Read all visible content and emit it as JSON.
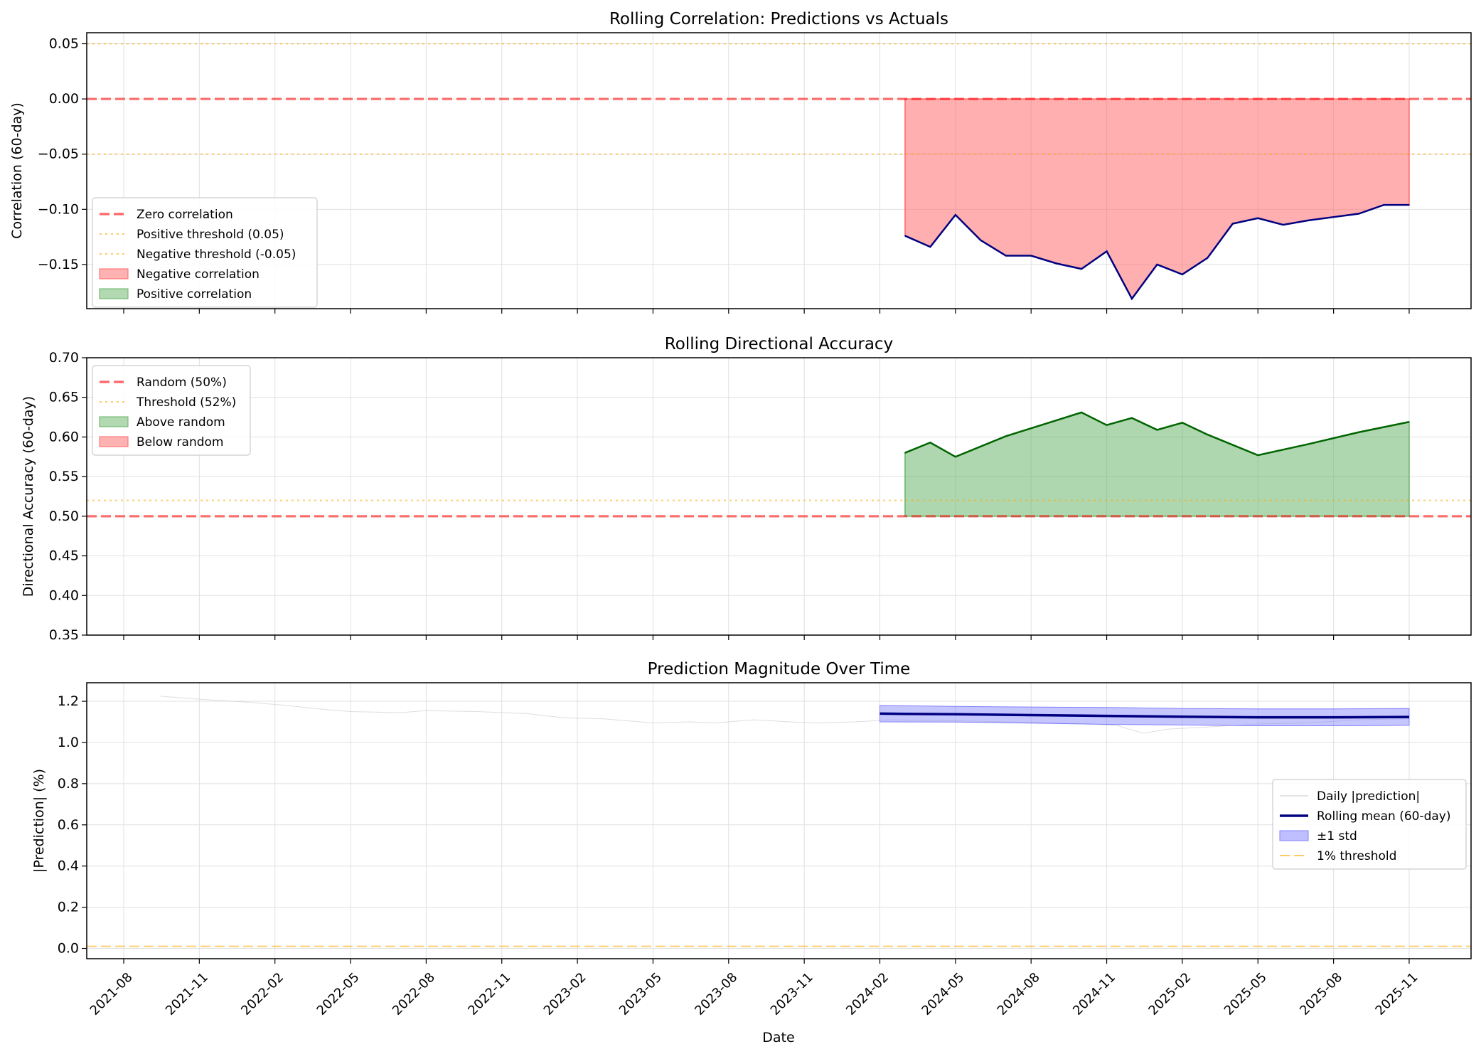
{
  "figure": {
    "xlabel": "Date"
  },
  "x_ticks": [
    "2021-08",
    "2021-11",
    "2022-02",
    "2022-05",
    "2022-08",
    "2022-11",
    "2023-02",
    "2023-05",
    "2023-08",
    "2023-11",
    "2024-02",
    "2024-05",
    "2024-08",
    "2024-11",
    "2025-02",
    "2025-05",
    "2025-08",
    "2025-11"
  ],
  "colors": {
    "navy": "#000080",
    "red_line": "#ff0000",
    "orange_dotted": "#ffa500",
    "neg_fill": "#ff6666",
    "pos_fill": "#66b366",
    "green_line": "#006400",
    "std_fill": "#8080ff",
    "daily_line": "#c8c8c8",
    "grid": "#e0e0e0"
  },
  "chart_data": [
    {
      "type": "line",
      "title": "Rolling Correlation: Predictions vs Actuals",
      "xlabel": "",
      "ylabel": "Correlation (60-day)",
      "ylim": [
        -0.19,
        0.06
      ],
      "yticks": [
        "0.05",
        "0.00",
        "−0.05",
        "−0.10",
        "−0.15"
      ],
      "ytick_values": [
        0.05,
        0.0,
        -0.05,
        -0.1,
        -0.15
      ],
      "grid": true,
      "legend_position": "lower-left",
      "legend": [
        "Zero correlation",
        "Positive threshold (0.05)",
        "Negative threshold (-0.05)",
        "Negative correlation",
        "Positive correlation"
      ],
      "reference_lines": [
        {
          "name": "Zero correlation",
          "y": 0.0,
          "style": "dashed",
          "color": "#ff0000"
        },
        {
          "name": "Positive threshold (0.05)",
          "y": 0.05,
          "style": "dotted",
          "color": "#ffa500"
        },
        {
          "name": "Negative threshold (-0.05)",
          "y": -0.05,
          "style": "dotted",
          "color": "#ffa500"
        }
      ],
      "series": [
        {
          "x": [
            "2024-03-01",
            "2024-04-01",
            "2024-05-01",
            "2024-06-01",
            "2024-07-01",
            "2024-08-01",
            "2024-09-01",
            "2024-10-01",
            "2024-11-01",
            "2024-12-01",
            "2025-01-01",
            "2025-02-01",
            "2025-03-01",
            "2025-04-01",
            "2025-05-01",
            "2025-06-01",
            "2025-07-01",
            "2025-08-01",
            "2025-09-01",
            "2025-10-01",
            "2025-11-01"
          ],
          "values": [
            -0.124,
            -0.134,
            -0.105,
            -0.128,
            -0.142,
            -0.142,
            -0.149,
            -0.154,
            -0.138,
            -0.181,
            -0.15,
            -0.159,
            -0.144,
            -0.113,
            -0.108,
            -0.114,
            -0.11,
            -0.107,
            -0.104,
            -0.096,
            -0.096
          ]
        }
      ]
    },
    {
      "type": "line",
      "title": "Rolling Directional Accuracy",
      "xlabel": "",
      "ylabel": "Directional Accuracy (60-day)",
      "ylim": [
        0.35,
        0.7
      ],
      "yticks": [
        "0.70",
        "0.65",
        "0.60",
        "0.55",
        "0.50",
        "0.45",
        "0.40",
        "0.35"
      ],
      "ytick_values": [
        0.7,
        0.65,
        0.6,
        0.55,
        0.5,
        0.45,
        0.4,
        0.35
      ],
      "grid": true,
      "legend_position": "upper-left",
      "legend": [
        "Random (50%)",
        "Threshold (52%)",
        "Above random",
        "Below random"
      ],
      "reference_lines": [
        {
          "name": "Random (50%)",
          "y": 0.5,
          "style": "dashed",
          "color": "#ff0000"
        },
        {
          "name": "Threshold (52%)",
          "y": 0.52,
          "style": "dotted",
          "color": "#ffa500"
        }
      ],
      "series": [
        {
          "x": [
            "2024-03-01",
            "2024-04-01",
            "2024-05-01",
            "2024-07-01",
            "2024-09-01",
            "2024-10-01",
            "2024-11-01",
            "2024-12-01",
            "2025-01-01",
            "2025-02-01",
            "2025-03-01",
            "2025-05-01",
            "2025-07-01",
            "2025-09-01",
            "2025-11-01"
          ],
          "values": [
            0.58,
            0.593,
            0.575,
            0.601,
            0.621,
            0.631,
            0.615,
            0.624,
            0.609,
            0.618,
            0.603,
            0.577,
            0.591,
            0.606,
            0.619
          ]
        }
      ]
    },
    {
      "type": "line",
      "title": "Prediction Magnitude Over Time",
      "xlabel": "Date",
      "ylabel": "|Prediction| (%)",
      "ylim": [
        -0.05,
        1.29
      ],
      "yticks": [
        "1.2",
        "1.0",
        "0.8",
        "0.6",
        "0.4",
        "0.2",
        "0.0"
      ],
      "ytick_values": [
        1.2,
        1.0,
        0.8,
        0.6,
        0.4,
        0.2,
        0.0
      ],
      "grid": true,
      "legend_position": "center-right",
      "legend": [
        "Daily |prediction|",
        "Rolling mean (60-day)",
        "±1 std",
        "1% threshold"
      ],
      "reference_lines": [
        {
          "name": "1% threshold",
          "y": 0.01,
          "style": "dashed",
          "color": "#ffa500"
        }
      ],
      "series": [
        {
          "name": "Daily |prediction|",
          "x": [
            "2021-09-15",
            "2021-11-01",
            "2022-01-01",
            "2022-02-15",
            "2022-04-01",
            "2022-05-01",
            "2022-07-01",
            "2022-08-01",
            "2022-10-01",
            "2022-12-01",
            "2023-01-15",
            "2023-03-01",
            "2023-05-01",
            "2023-06-15",
            "2023-07-15",
            "2023-09-01",
            "2023-10-15",
            "2023-11-15",
            "2024-01-01",
            "2024-02-15",
            "2024-05-01",
            "2024-07-01",
            "2024-09-01",
            "2024-10-15",
            "2024-11-15",
            "2024-12-15",
            "2025-01-15",
            "2025-03-01",
            "2025-05-01",
            "2025-07-01",
            "2025-09-01",
            "2025-11-01"
          ],
          "values": [
            1.225,
            1.21,
            1.195,
            1.18,
            1.16,
            1.15,
            1.145,
            1.155,
            1.15,
            1.14,
            1.12,
            1.115,
            1.095,
            1.1,
            1.095,
            1.11,
            1.1,
            1.095,
            1.1,
            1.11,
            1.105,
            1.1,
            1.095,
            1.09,
            1.08,
            1.045,
            1.065,
            1.075,
            1.09,
            1.095,
            1.11,
            1.115
          ]
        },
        {
          "name": "Rolling mean (60-day)",
          "x": [
            "2024-02-01",
            "2024-05-01",
            "2024-08-01",
            "2024-11-01",
            "2025-02-01",
            "2025-05-01",
            "2025-08-01",
            "2025-11-01"
          ],
          "values": [
            1.14,
            1.137,
            1.133,
            1.129,
            1.125,
            1.122,
            1.122,
            1.124
          ]
        },
        {
          "name": "±1 std",
          "x": [
            "2024-02-01",
            "2024-05-01",
            "2024-08-01",
            "2024-11-01",
            "2025-02-01",
            "2025-05-01",
            "2025-08-01",
            "2025-11-01"
          ],
          "upper": [
            1.18,
            1.175,
            1.172,
            1.17,
            1.165,
            1.163,
            1.163,
            1.165
          ],
          "lower": [
            1.1,
            1.099,
            1.094,
            1.088,
            1.085,
            1.081,
            1.081,
            1.083
          ]
        }
      ]
    }
  ]
}
